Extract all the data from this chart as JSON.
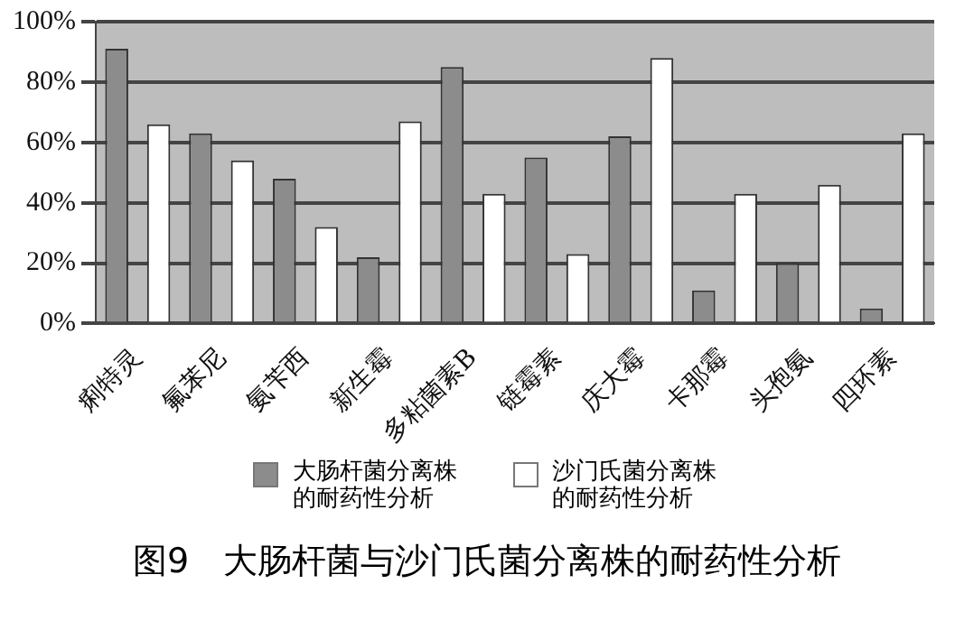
{
  "chart_data": {
    "type": "bar",
    "title": "图9　大肠杆菌与沙门氏菌分离株的耐药性分析",
    "categories": [
      "痢特灵",
      "氟苯尼",
      "氨苄西",
      "新生霉",
      "多粘菌素B",
      "链霉素",
      "庆大霉",
      "卡那霉",
      "头孢氨",
      "四环素"
    ],
    "series": [
      {
        "name": "大肠杆菌分离株的耐药性分析",
        "color": "#8c8c8c",
        "values": [
          91,
          63,
          48,
          22,
          85,
          55,
          62,
          11,
          20,
          5
        ]
      },
      {
        "name": "沙门氏菌分离株的耐药性分析",
        "color": "#ffffff",
        "values": [
          66,
          54,
          32,
          67,
          43,
          23,
          88,
          43,
          46,
          63
        ]
      }
    ],
    "ylim": [
      0,
      100
    ],
    "yticks": [
      {
        "value": 0,
        "label": "0%"
      },
      {
        "value": 20,
        "label": "20%"
      },
      {
        "value": 40,
        "label": "40%"
      },
      {
        "value": 60,
        "label": "60%"
      },
      {
        "value": 80,
        "label": "80%"
      },
      {
        "value": 100,
        "label": "100%"
      }
    ],
    "grid": "y",
    "legend": "bottom"
  }
}
